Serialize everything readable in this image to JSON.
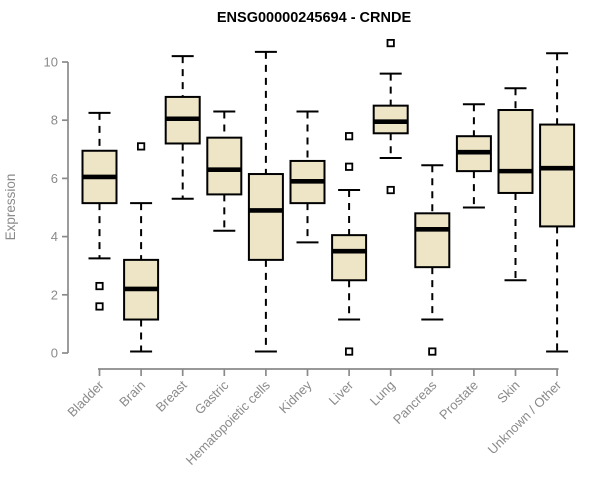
{
  "chart_data": {
    "type": "boxplot",
    "title": "ENSG00000245694 - CRNDE",
    "ylabel": "Expression",
    "xlabel": "",
    "ylim": [
      0,
      10.8
    ],
    "yticks": [
      0,
      2,
      4,
      6,
      8,
      10
    ],
    "grid": false,
    "legend": "none",
    "categories": [
      "Bladder",
      "Brain",
      "Breast",
      "Gastric",
      "Hematopoietic cells",
      "Kidney",
      "Liver",
      "Lung",
      "Pancreas",
      "Prostate",
      "Skin",
      "Unknown / Other"
    ],
    "series": [
      {
        "name": "Bladder",
        "low": 3.25,
        "q1": 5.15,
        "median": 6.05,
        "q3": 6.95,
        "high": 8.25,
        "outliers": [
          2.3,
          1.6
        ]
      },
      {
        "name": "Brain",
        "low": 0.05,
        "q1": 1.15,
        "median": 2.2,
        "q3": 3.2,
        "high": 5.15,
        "outliers": [
          7.1
        ]
      },
      {
        "name": "Breast",
        "low": 5.3,
        "q1": 7.2,
        "median": 8.05,
        "q3": 8.8,
        "high": 10.2,
        "outliers": []
      },
      {
        "name": "Gastric",
        "low": 4.2,
        "q1": 5.45,
        "median": 6.3,
        "q3": 7.4,
        "high": 8.3,
        "outliers": []
      },
      {
        "name": "Hematopoietic cells",
        "low": 0.05,
        "q1": 3.2,
        "median": 4.9,
        "q3": 6.15,
        "high": 10.35,
        "outliers": []
      },
      {
        "name": "Kidney",
        "low": 3.8,
        "q1": 5.15,
        "median": 5.9,
        "q3": 6.6,
        "high": 8.3,
        "outliers": []
      },
      {
        "name": "Liver",
        "low": 1.15,
        "q1": 2.5,
        "median": 3.5,
        "q3": 4.05,
        "high": 5.6,
        "outliers": [
          7.45,
          6.4,
          0.05
        ]
      },
      {
        "name": "Lung",
        "low": 6.7,
        "q1": 7.55,
        "median": 7.95,
        "q3": 8.5,
        "high": 9.6,
        "outliers": [
          10.65,
          5.6
        ]
      },
      {
        "name": "Pancreas",
        "low": 1.15,
        "q1": 2.95,
        "median": 4.25,
        "q3": 4.8,
        "high": 6.45,
        "outliers": [
          0.05
        ]
      },
      {
        "name": "Prostate",
        "low": 5.0,
        "q1": 6.25,
        "median": 6.9,
        "q3": 7.45,
        "high": 8.55,
        "outliers": []
      },
      {
        "name": "Skin",
        "low": 2.5,
        "q1": 5.5,
        "median": 6.25,
        "q3": 8.35,
        "high": 9.1,
        "outliers": []
      },
      {
        "name": "Unknown / Other",
        "low": 0.05,
        "q1": 4.35,
        "median": 6.35,
        "q3": 7.85,
        "high": 10.3,
        "outliers": []
      }
    ],
    "colors": {
      "box_fill": "#EDE5C6",
      "box_stroke": "#000000",
      "median": "#000000",
      "whisker": "#000000",
      "outlier_stroke": "#000000",
      "outlier_fill": "#ffffff",
      "axis": "#8a8a8a",
      "tick_label": "#8a8a8a",
      "title": "#000000",
      "background": "#ffffff"
    }
  }
}
